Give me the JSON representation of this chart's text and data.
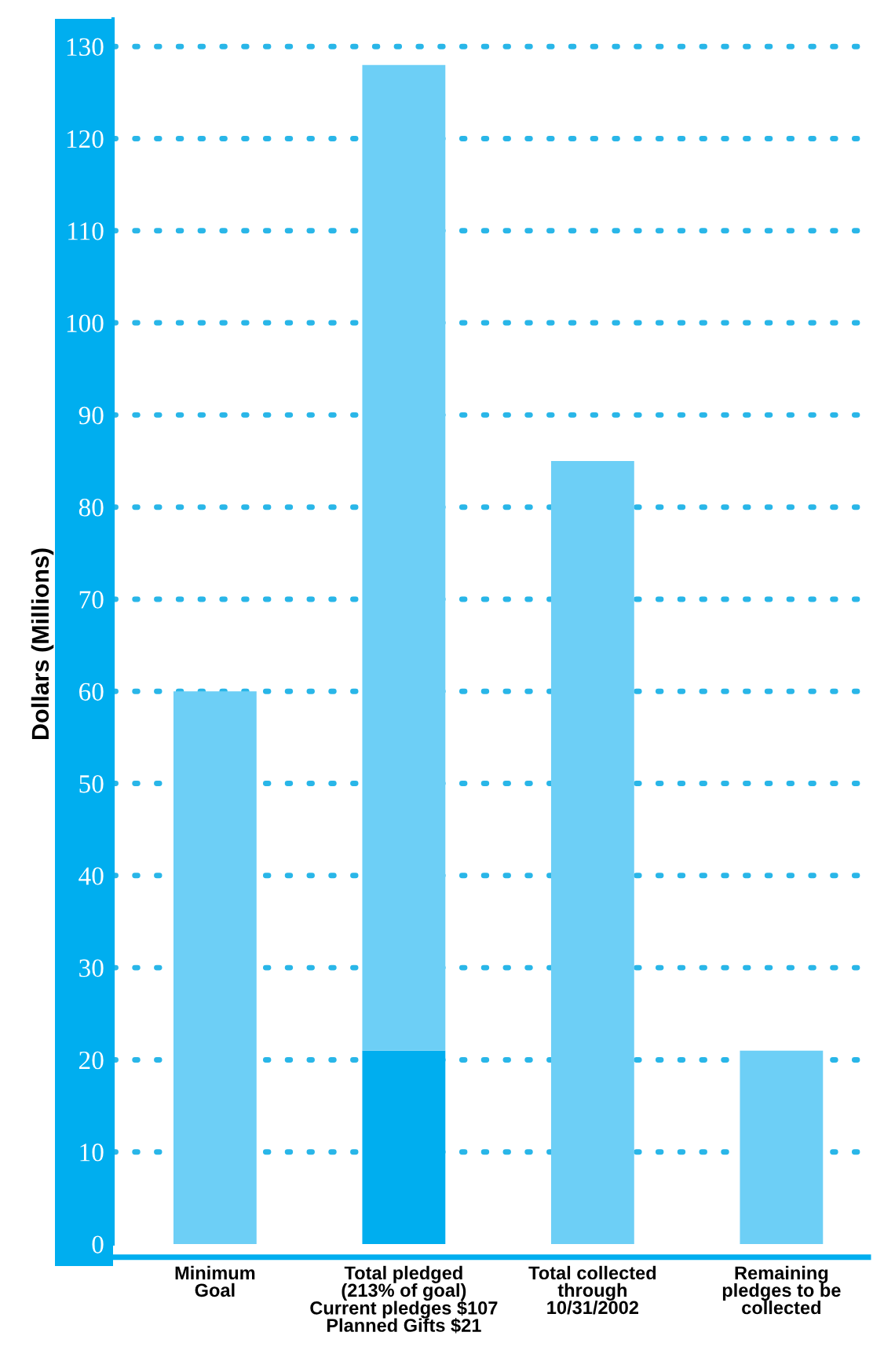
{
  "chart_data": {
    "type": "bar",
    "stacked": true,
    "ylabel": "Dollars (Millions)",
    "categories": [
      "Minimum\nGoal",
      "Total pledged\n(213% of goal)\nCurrent pledges $107\nPlanned Gifts $21",
      "Total collected\nthrough\n10/31/2002",
      "Remaining\npledges to be\ncollected"
    ],
    "series": [
      {
        "color": "#00aeef",
        "values": [
          null,
          21,
          null,
          null
        ]
      },
      {
        "color": "#6dcff6",
        "values": [
          60,
          107,
          85,
          21
        ]
      }
    ],
    "ylim": [
      0,
      133
    ],
    "yticks": [
      0,
      10,
      20,
      30,
      40,
      50,
      60,
      70,
      80,
      90,
      100,
      110,
      120,
      130
    ],
    "grid": "y",
    "legend": false
  }
}
